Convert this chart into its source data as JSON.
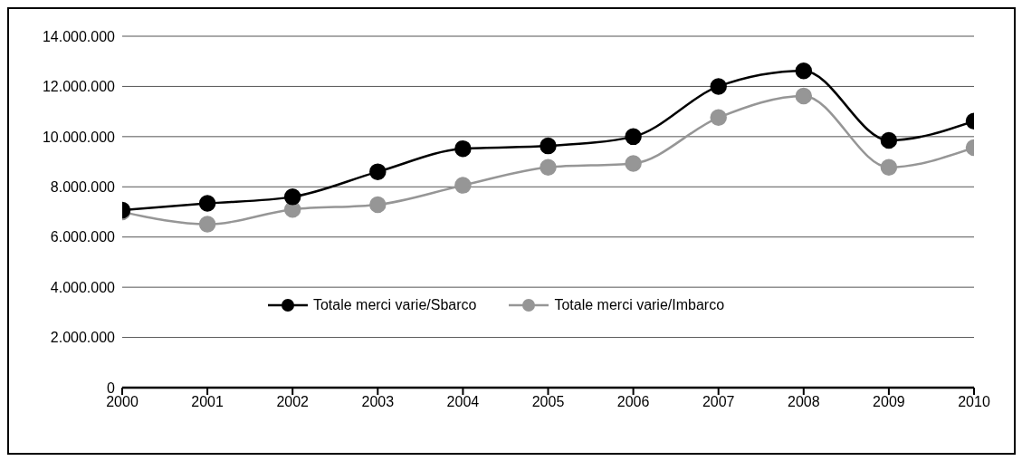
{
  "chart_data": {
    "type": "line",
    "x": [
      2000,
      2001,
      2002,
      2003,
      2004,
      2005,
      2006,
      2007,
      2008,
      2009,
      2010
    ],
    "series": [
      {
        "name": "Totale merci varie/Sbarco",
        "color": "#000000",
        "values": [
          7070000,
          7340000,
          7600000,
          8600000,
          9520000,
          9630000,
          10000000,
          12000000,
          12620000,
          9850000,
          10620000
        ]
      },
      {
        "name": "Totale merci varie/Imbarco",
        "color": "#969696",
        "values": [
          7000000,
          6510000,
          7100000,
          7290000,
          8060000,
          8780000,
          8930000,
          10760000,
          11620000,
          8780000,
          9560000
        ]
      }
    ],
    "xlim": [
      2000,
      2010
    ],
    "xticks": [
      2000,
      2001,
      2002,
      2003,
      2004,
      2005,
      2006,
      2007,
      2008,
      2009,
      2010
    ],
    "ylim": [
      0,
      14000000
    ],
    "yticks": [
      {
        "value": 0,
        "label": "0"
      },
      {
        "value": 2000000,
        "label": "2.000.000"
      },
      {
        "value": 4000000,
        "label": "4.000.000"
      },
      {
        "value": 6000000,
        "label": "6.000.000"
      },
      {
        "value": 8000000,
        "label": "8.000.000"
      },
      {
        "value": 10000000,
        "label": "10.000.000"
      },
      {
        "value": 12000000,
        "label": "12.000.000"
      },
      {
        "value": 14000000,
        "label": "14.000.000"
      }
    ],
    "grid": "y",
    "legend": "bottom",
    "marker": "circle",
    "line_style": "solid"
  }
}
